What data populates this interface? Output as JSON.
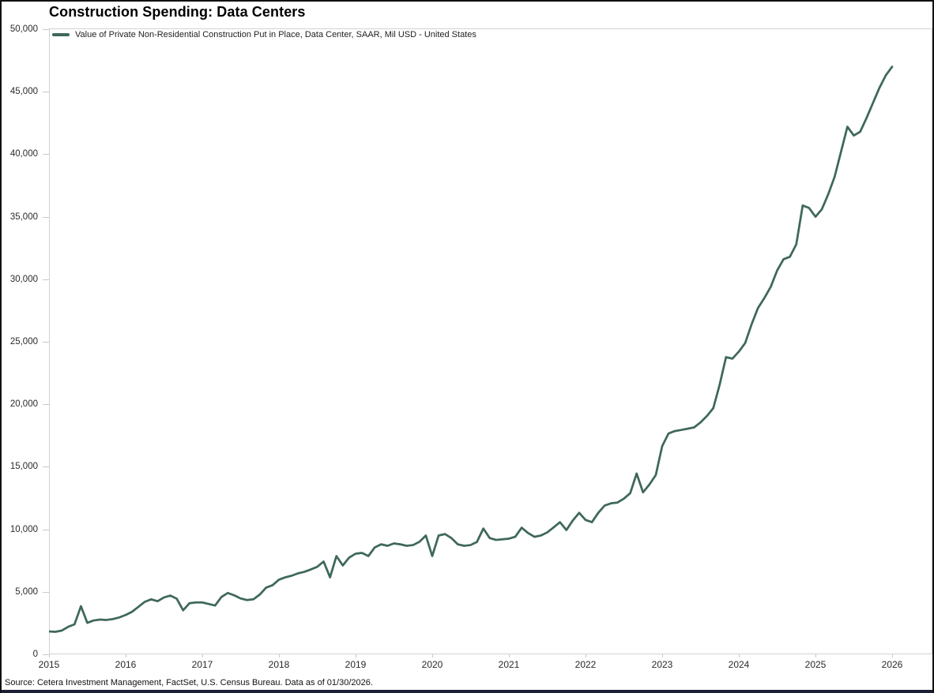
{
  "title": "Construction Spending: Data Centers",
  "legend": {
    "label": "Value of Private Non-Residential Construction Put in Place, Data Center, SAAR, Mil USD - United States"
  },
  "source": "Source: Cetera Investment Management, FactSet, U.S. Census Bureau. Data as of 01/30/2026.",
  "colors": {
    "line": "#3e685c",
    "axis": "#c9c9c9",
    "text": "#222222",
    "bottom_bar": "#1b2036"
  },
  "chart_data": {
    "type": "line",
    "title": "Construction Spending: Data Centers",
    "xlabel": "",
    "ylabel": "",
    "grid": false,
    "legend_position": "top-left",
    "ylim": [
      0,
      50000
    ],
    "y_ticks": [
      0,
      5000,
      10000,
      15000,
      20000,
      25000,
      30000,
      35000,
      40000,
      45000,
      50000
    ],
    "x_tick_labels": [
      "2015",
      "2016",
      "2017",
      "2018",
      "2019",
      "2020",
      "2021",
      "2022",
      "2023",
      "2024",
      "2025",
      "2026"
    ],
    "series": [
      {
        "name": "Value of Private Non-Residential Construction Put in Place, Data Center, SAAR, Mil USD - United States",
        "frequency": "monthly",
        "x_start": "2015-01",
        "x_end": "2026-01",
        "values": [
          1830,
          1800,
          1900,
          2200,
          2400,
          3850,
          2520,
          2710,
          2780,
          2750,
          2820,
          2950,
          3150,
          3400,
          3800,
          4200,
          4400,
          4250,
          4550,
          4700,
          4450,
          3520,
          4090,
          4150,
          4150,
          4030,
          3900,
          4590,
          4910,
          4720,
          4470,
          4340,
          4400,
          4780,
          5340,
          5530,
          5970,
          6160,
          6290,
          6480,
          6600,
          6790,
          7000,
          7420,
          6160,
          7860,
          7110,
          7740,
          8050,
          8110,
          7860,
          8550,
          8800,
          8680,
          8870,
          8800,
          8680,
          8740,
          9000,
          9500,
          7860,
          9500,
          9620,
          9300,
          8800,
          8680,
          8740,
          8990,
          10060,
          9300,
          9150,
          9200,
          9250,
          9400,
          10130,
          9700,
          9400,
          9500,
          9750,
          10150,
          10570,
          9940,
          10700,
          11320,
          10750,
          10570,
          11320,
          11900,
          12080,
          12140,
          12450,
          12890,
          14460,
          12960,
          13580,
          14340,
          16650,
          17670,
          17860,
          17950,
          18050,
          18150,
          18550,
          19060,
          19690,
          21570,
          23770,
          23650,
          24210,
          24900,
          26400,
          27700,
          28500,
          29400,
          30700,
          31600,
          31800,
          32800,
          35900,
          35700,
          35000,
          35600,
          36800,
          38200,
          40200,
          42200,
          41500,
          41800,
          42900,
          44100,
          45300,
          46300,
          47000
        ]
      }
    ]
  }
}
